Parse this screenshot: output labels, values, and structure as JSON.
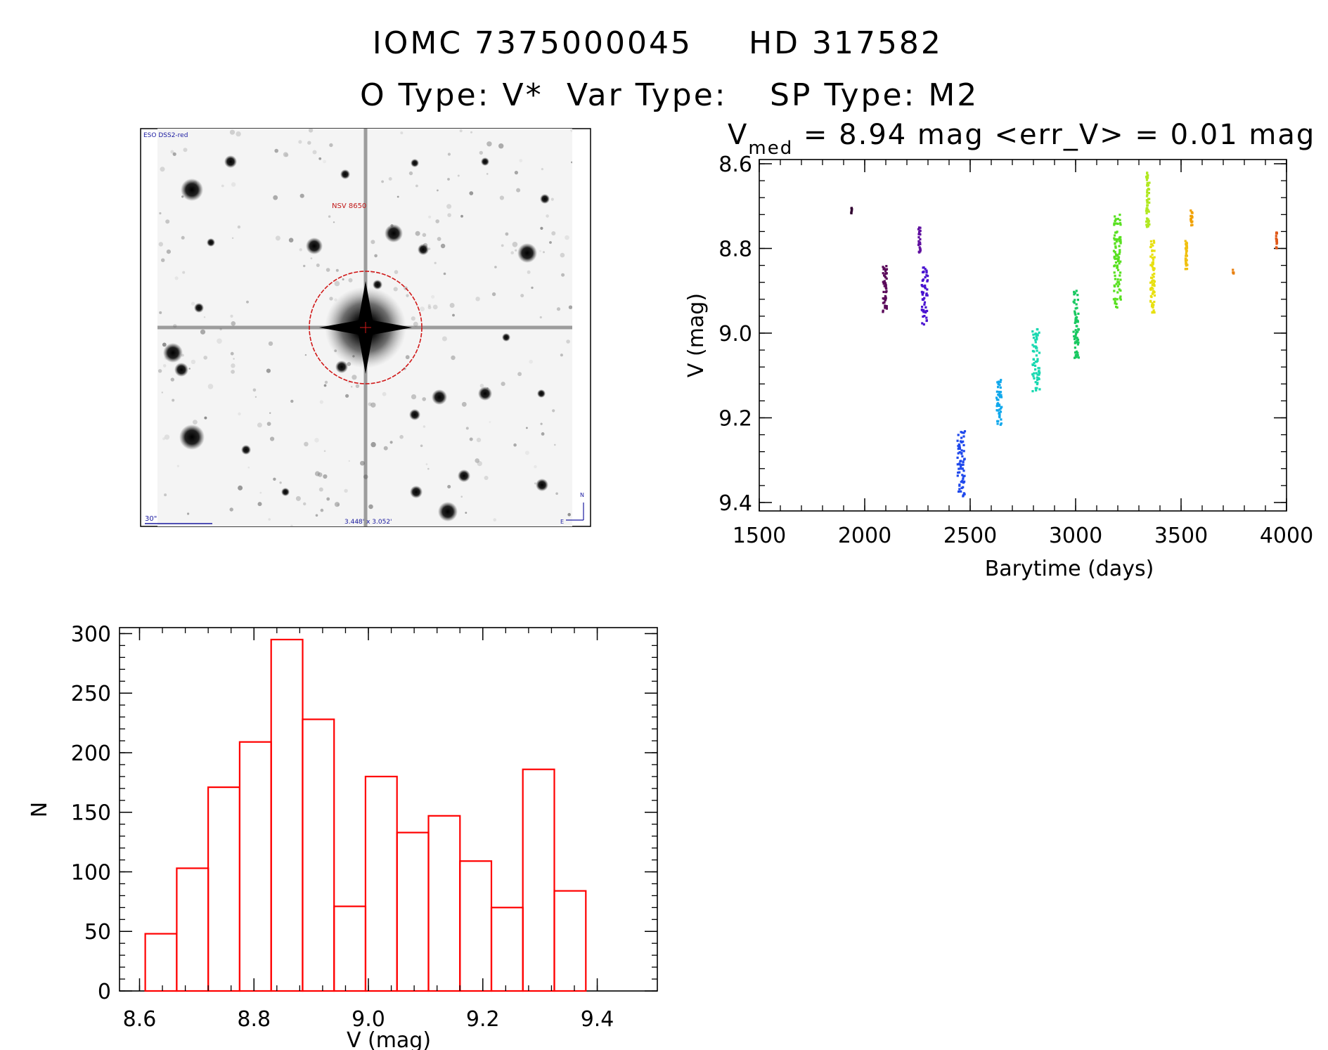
{
  "header": {
    "line1_id": "IOMC 7375000045",
    "line1_hd": "HD 317582",
    "o_type": "O Type: V*",
    "var_type": "Var Type:",
    "sp_type": "SP Type: M2"
  },
  "finder_image": {
    "survey_label": "ESO DSS2-red",
    "target_label": "NSV 8650",
    "scale_label": "30\"",
    "fov_label": "3.448' x 3.052'",
    "compass_n": "N",
    "compass_e": "E"
  },
  "chart_data": [
    {
      "type": "scatter",
      "title_prefix": "V",
      "title_subscript": "med",
      "title_rest": " = 8.94 mag <err_V> = 0.01 mag",
      "xlabel": "Barytime (days)",
      "ylabel": "V (mag)",
      "xlim": [
        1500,
        4000
      ],
      "ylim": [
        9.42,
        8.59
      ],
      "y_inverted": true,
      "grid": false,
      "x_ticks": [
        1500,
        2000,
        2500,
        3000,
        3500,
        4000
      ],
      "x_tick_labels": [
        "1500",
        "2000",
        "2500",
        "3000",
        "3500",
        "4000"
      ],
      "y_ticks": [
        8.6,
        8.8,
        9.0,
        9.2,
        9.4
      ],
      "y_tick_labels": [
        "8.6",
        "8.8",
        "9.0",
        "9.2",
        "9.4"
      ],
      "color_coding": "time (rainbow)",
      "clusters": [
        {
          "x": [
            1935,
            1940
          ],
          "y": [
            8.7,
            8.72
          ],
          "color": "#300030"
        },
        {
          "x": [
            2085,
            2105
          ],
          "y": [
            8.84,
            8.95
          ],
          "color": "#5a0a5a"
        },
        {
          "x": [
            2255,
            2265
          ],
          "y": [
            8.75,
            8.81
          ],
          "color": "#6010a0"
        },
        {
          "x": [
            2270,
            2300
          ],
          "y": [
            8.84,
            8.98
          ],
          "color": "#4a14d0"
        },
        {
          "x": [
            2440,
            2475
          ],
          "y": [
            9.23,
            9.39
          ],
          "color": "#1e48ec"
        },
        {
          "x": [
            2625,
            2650
          ],
          "y": [
            9.11,
            9.22
          ],
          "color": "#10a8ec"
        },
        {
          "x": [
            2795,
            2830
          ],
          "y": [
            8.99,
            9.14
          ],
          "color": "#18d8b0"
        },
        {
          "x": [
            2990,
            3015
          ],
          "y": [
            8.9,
            9.06
          ],
          "color": "#18c860"
        },
        {
          "x": [
            3180,
            3215
          ],
          "y": [
            8.72,
            8.94
          ],
          "color": "#58e020"
        },
        {
          "x": [
            3335,
            3350
          ],
          "y": [
            8.62,
            8.75
          ],
          "color": "#b0e820"
        },
        {
          "x": [
            3355,
            3375
          ],
          "y": [
            8.78,
            8.96
          ],
          "color": "#e8e010"
        },
        {
          "x": [
            3520,
            3530
          ],
          "y": [
            8.78,
            8.85
          ],
          "color": "#f0c010"
        },
        {
          "x": [
            3545,
            3555
          ],
          "y": [
            8.71,
            8.75
          ],
          "color": "#f0a000"
        },
        {
          "x": [
            3745,
            3750
          ],
          "y": [
            8.85,
            8.86
          ],
          "color": "#e88010"
        },
        {
          "x": [
            3950,
            3955
          ],
          "y": [
            8.76,
            8.8
          ],
          "color": "#e05818"
        }
      ]
    },
    {
      "type": "bar",
      "subtype": "histogram",
      "xlabel": "V (mag)",
      "ylabel": "N",
      "xlim": [
        8.565,
        9.505
      ],
      "ylim": [
        0,
        305
      ],
      "grid": false,
      "bar_color": "#ff0000",
      "x_ticks": [
        8.6,
        8.8,
        9.0,
        9.2,
        9.4
      ],
      "x_tick_labels": [
        "8.6",
        "8.8",
        "9.0",
        "9.2",
        "9.4"
      ],
      "y_ticks": [
        0,
        50,
        100,
        150,
        200,
        250,
        300
      ],
      "y_tick_labels": [
        "0",
        "50",
        "100",
        "150",
        "200",
        "250",
        "300"
      ],
      "bin_edges": [
        8.61,
        8.665,
        8.72,
        8.775,
        8.83,
        8.885,
        8.94,
        8.995,
        9.05,
        9.105,
        9.16,
        9.215,
        9.27,
        9.325,
        9.38
      ],
      "values": [
        48,
        103,
        171,
        209,
        295,
        228,
        71,
        180,
        133,
        147,
        109,
        70,
        186,
        84
      ]
    }
  ]
}
